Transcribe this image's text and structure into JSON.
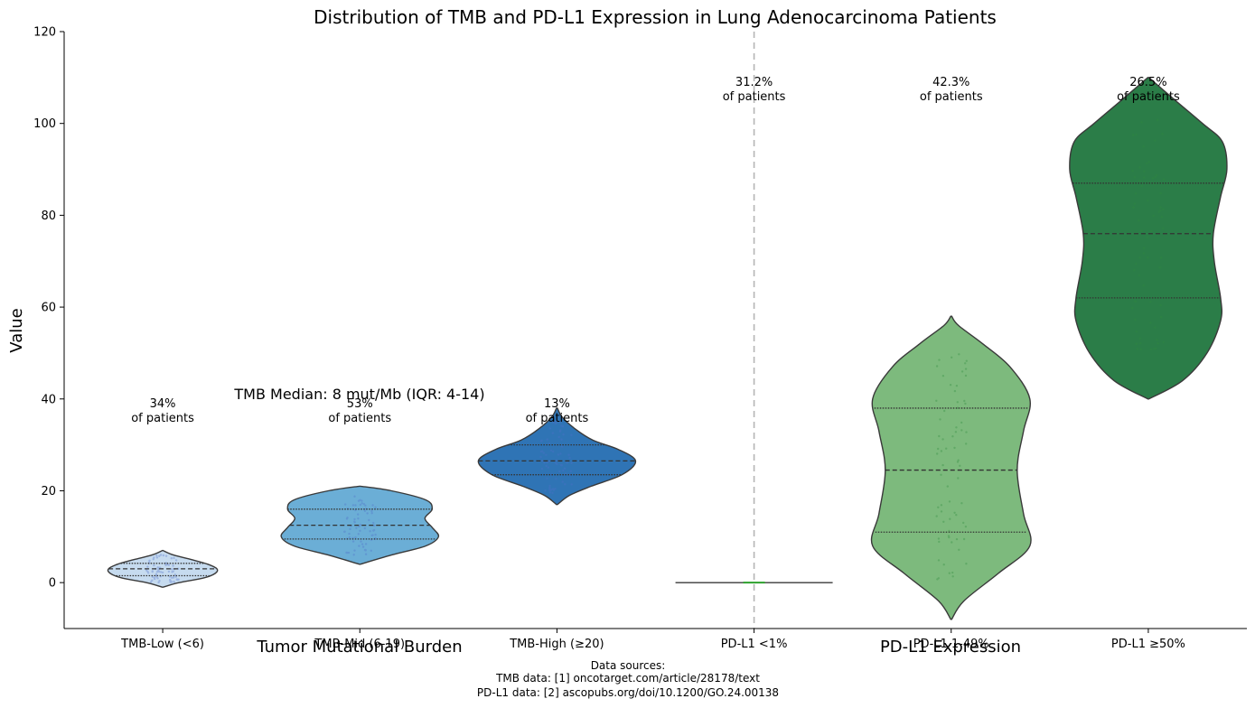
{
  "chart_data": {
    "type": "violin",
    "title": "Distribution of TMB and PD-L1 Expression in Lung Adenocarcinoma Patients",
    "xlabel": "",
    "ylabel": "Value",
    "ylim": [
      -10,
      120
    ],
    "yticks": [
      0,
      20,
      40,
      60,
      80,
      100,
      120
    ],
    "grid": false,
    "categories": [
      "TMB-Low (<6)",
      "TMB-Mid (6-19)",
      "TMB-High (≥20)",
      "PD-L1 <1%",
      "PD-L1 1-49%",
      "PD-L1 ≥50%"
    ],
    "groups": [
      {
        "label": "Tumor Mutational Burden",
        "categories": [
          0,
          1,
          2
        ]
      },
      {
        "label": "PD-L1 Expression",
        "categories": [
          3,
          4,
          5
        ]
      }
    ],
    "series": [
      {
        "category": "TMB-Low (<6)",
        "color": "#c6dbef",
        "min": -1,
        "q1": 1.5,
        "median": 3,
        "q3": 4.2,
        "max": 7,
        "share": "34%",
        "profile": [
          [
            -1,
            0.3
          ],
          [
            0,
            18
          ],
          [
            1,
            45
          ],
          [
            2,
            58
          ],
          [
            3,
            60
          ],
          [
            4,
            50
          ],
          [
            5,
            32
          ],
          [
            6,
            12
          ],
          [
            7,
            0.3
          ]
        ]
      },
      {
        "category": "TMB-Mid (6-19)",
        "color": "#6baed6",
        "min": 4,
        "q1": 9.5,
        "median": 12.5,
        "q3": 16,
        "max": 21,
        "share": "53%",
        "profile": [
          [
            4,
            0.5
          ],
          [
            6,
            35
          ],
          [
            8,
            73
          ],
          [
            10,
            87
          ],
          [
            12,
            80
          ],
          [
            14,
            72
          ],
          [
            16,
            80
          ],
          [
            18,
            73
          ],
          [
            20,
            35
          ],
          [
            21,
            0.5
          ]
        ]
      },
      {
        "category": "TMB-High (≥20)",
        "color": "#2f74b5",
        "min": 17,
        "q1": 23.5,
        "median": 26.5,
        "q3": 30,
        "max": 38,
        "share": "13%",
        "profile": [
          [
            17,
            0.5
          ],
          [
            19,
            14
          ],
          [
            21,
            38
          ],
          [
            23.5,
            72
          ],
          [
            26.5,
            87
          ],
          [
            29,
            68
          ],
          [
            31,
            40
          ],
          [
            33.5,
            20
          ],
          [
            36,
            6
          ],
          [
            38,
            0.5
          ]
        ]
      },
      {
        "category": "PD-L1 <1%",
        "color": "#2ca02c",
        "min": 0,
        "q1": 0,
        "median": 0,
        "q3": 0,
        "max": 0,
        "share": "31.2%",
        "profile": [
          [
            0,
            87
          ]
        ]
      },
      {
        "category": "PD-L1 1-49%",
        "color": "#7dba7d",
        "min": -8,
        "q1": 11,
        "median": 24.5,
        "q3": 38,
        "max": 58,
        "share": "42.3%",
        "profile": [
          [
            -8,
            0.5
          ],
          [
            -4,
            14
          ],
          [
            2,
            52
          ],
          [
            8,
            87
          ],
          [
            15,
            80
          ],
          [
            24.5,
            73
          ],
          [
            33,
            80
          ],
          [
            40,
            87
          ],
          [
            47,
            65
          ],
          [
            52,
            35
          ],
          [
            56,
            8
          ],
          [
            58,
            0.5
          ]
        ]
      },
      {
        "category": "PD-L1 ≥50%",
        "color": "#2b7d48",
        "min": 40,
        "q1": 62,
        "median": 76,
        "q3": 87,
        "max": 110,
        "share": "26.5%",
        "profile": [
          [
            40,
            0.5
          ],
          [
            44,
            38
          ],
          [
            50,
            65
          ],
          [
            57,
            80
          ],
          [
            62,
            80
          ],
          [
            70,
            73
          ],
          [
            76,
            72
          ],
          [
            84,
            80
          ],
          [
            90,
            87
          ],
          [
            96,
            82
          ],
          [
            100,
            60
          ],
          [
            105,
            30
          ],
          [
            110,
            0.5
          ]
        ]
      }
    ],
    "separator_after_category": 3,
    "annotations": {
      "share_suffix": "of patients",
      "tmb_median": "TMB Median: 8 mut/Mb (IQR: 4-14)"
    }
  },
  "footer": {
    "line1": "Data sources:",
    "line2": "TMB data: [1] oncotarget.com/article/28178/text",
    "line3": "PD-L1 data: [2] ascopubs.org/doi/10.1200/GO.24.00138"
  }
}
